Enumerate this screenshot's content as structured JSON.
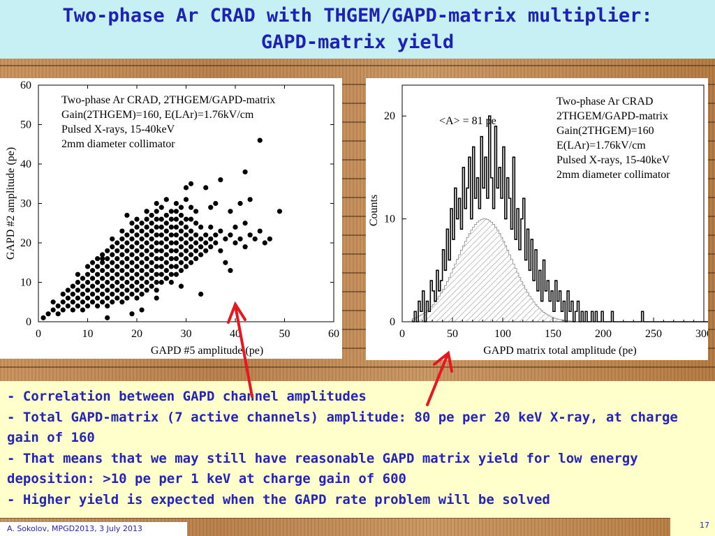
{
  "slide": {
    "title_line1": "Two-phase Ar CRAD with THGEM/GAPD-matrix multiplier:",
    "title_line2": "GAPD-matrix yield",
    "bullets": [
      "- Correlation between GAPD channel amplitudes",
      "- Total GAPD-matrix (7 active channels) amplitude: 80 pe per 20 keV X-ray, at charge gain of 160",
      "- That means that we may still have reasonable GAPD matrix yield for low energy deposition: >10 pe per 1 keV at charge gain of 600",
      "- Higher yield is expected when the GAPD rate problem will be solved"
    ],
    "footer_author": "A. Sokolov, MPGD2013, 3 July 2013",
    "page_number": "17",
    "colors": {
      "title_bg": "#c6f0f4",
      "title_text": "#1e22b4",
      "textbox_bg": "#ffffcc",
      "arrow": "#e8161e"
    }
  },
  "chart_data": [
    {
      "type": "scatter",
      "xlabel": "GAPD #5 amplitude (pe)",
      "ylabel": "GAPD #2 amplitude (pe)",
      "xlim": [
        0,
        60
      ],
      "ylim": [
        0,
        60
      ],
      "xticks": [
        0,
        10,
        20,
        30,
        40,
        50,
        60
      ],
      "yticks": [
        0,
        10,
        20,
        30,
        40,
        50,
        60
      ],
      "annotations": [
        "Two-phase Ar CRAD, 2THGEM/GAPD-matrix",
        "Gain(2THGEM)=160, E(LAr)=1.76kV/cm",
        "Pulsed X-rays, 15-40keV",
        "2mm diameter collimator"
      ],
      "points": [
        [
          1,
          1
        ],
        [
          2,
          2
        ],
        [
          3,
          3
        ],
        [
          3,
          5
        ],
        [
          4,
          2
        ],
        [
          4,
          4
        ],
        [
          5,
          3
        ],
        [
          5,
          5
        ],
        [
          5,
          7
        ],
        [
          6,
          4
        ],
        [
          6,
          6
        ],
        [
          6,
          8
        ],
        [
          7,
          3
        ],
        [
          7,
          5
        ],
        [
          7,
          7
        ],
        [
          7,
          9
        ],
        [
          8,
          4
        ],
        [
          8,
          6
        ],
        [
          8,
          8
        ],
        [
          8,
          10
        ],
        [
          8,
          12
        ],
        [
          9,
          3
        ],
        [
          9,
          5
        ],
        [
          9,
          7
        ],
        [
          9,
          9
        ],
        [
          9,
          11
        ],
        [
          10,
          4
        ],
        [
          10,
          6
        ],
        [
          10,
          8
        ],
        [
          10,
          10
        ],
        [
          10,
          12
        ],
        [
          10,
          14
        ],
        [
          11,
          5
        ],
        [
          11,
          7
        ],
        [
          11,
          9
        ],
        [
          11,
          11
        ],
        [
          11,
          13
        ],
        [
          11,
          15
        ],
        [
          12,
          4
        ],
        [
          12,
          6
        ],
        [
          12,
          8
        ],
        [
          12,
          10
        ],
        [
          12,
          12
        ],
        [
          12,
          14
        ],
        [
          12,
          16
        ],
        [
          13,
          5
        ],
        [
          13,
          7
        ],
        [
          13,
          9
        ],
        [
          13,
          11
        ],
        [
          13,
          13
        ],
        [
          13,
          15
        ],
        [
          13,
          17
        ],
        [
          14,
          4
        ],
        [
          14,
          6
        ],
        [
          14,
          8
        ],
        [
          14,
          10
        ],
        [
          14,
          12
        ],
        [
          14,
          14
        ],
        [
          14,
          16
        ],
        [
          14,
          18
        ],
        [
          15,
          5
        ],
        [
          15,
          7
        ],
        [
          15,
          9
        ],
        [
          15,
          11
        ],
        [
          15,
          13
        ],
        [
          15,
          15
        ],
        [
          15,
          17
        ],
        [
          15,
          19
        ],
        [
          15,
          21
        ],
        [
          16,
          6
        ],
        [
          16,
          8
        ],
        [
          16,
          10
        ],
        [
          16,
          12
        ],
        [
          16,
          14
        ],
        [
          16,
          16
        ],
        [
          16,
          18
        ],
        [
          16,
          20
        ],
        [
          17,
          5
        ],
        [
          17,
          7
        ],
        [
          17,
          9
        ],
        [
          17,
          11
        ],
        [
          17,
          13
        ],
        [
          17,
          15
        ],
        [
          17,
          17
        ],
        [
          17,
          19
        ],
        [
          17,
          21
        ],
        [
          17,
          23
        ],
        [
          18,
          6
        ],
        [
          18,
          8
        ],
        [
          18,
          10
        ],
        [
          18,
          12
        ],
        [
          18,
          14
        ],
        [
          18,
          16
        ],
        [
          18,
          18
        ],
        [
          18,
          20
        ],
        [
          18,
          22
        ],
        [
          19,
          7
        ],
        [
          19,
          9
        ],
        [
          19,
          11
        ],
        [
          19,
          13
        ],
        [
          19,
          15
        ],
        [
          19,
          17
        ],
        [
          19,
          19
        ],
        [
          19,
          21
        ],
        [
          19,
          23
        ],
        [
          19,
          25
        ],
        [
          20,
          6
        ],
        [
          20,
          8
        ],
        [
          20,
          10
        ],
        [
          20,
          12
        ],
        [
          20,
          14
        ],
        [
          20,
          16
        ],
        [
          20,
          18
        ],
        [
          20,
          20
        ],
        [
          20,
          22
        ],
        [
          20,
          24
        ],
        [
          20,
          26
        ],
        [
          21,
          7
        ],
        [
          21,
          9
        ],
        [
          21,
          11
        ],
        [
          21,
          13
        ],
        [
          21,
          15
        ],
        [
          21,
          17
        ],
        [
          21,
          19
        ],
        [
          21,
          21
        ],
        [
          21,
          23
        ],
        [
          21,
          25
        ],
        [
          22,
          8
        ],
        [
          22,
          10
        ],
        [
          22,
          12
        ],
        [
          22,
          14
        ],
        [
          22,
          16
        ],
        [
          22,
          18
        ],
        [
          22,
          20
        ],
        [
          22,
          22
        ],
        [
          22,
          24
        ],
        [
          22,
          26
        ],
        [
          22,
          28
        ],
        [
          23,
          9
        ],
        [
          23,
          11
        ],
        [
          23,
          13
        ],
        [
          23,
          15
        ],
        [
          23,
          17
        ],
        [
          23,
          19
        ],
        [
          23,
          21
        ],
        [
          23,
          23
        ],
        [
          23,
          25
        ],
        [
          23,
          27
        ],
        [
          24,
          8
        ],
        [
          24,
          10
        ],
        [
          24,
          12
        ],
        [
          24,
          14
        ],
        [
          24,
          16
        ],
        [
          24,
          18
        ],
        [
          24,
          20
        ],
        [
          24,
          22
        ],
        [
          24,
          24
        ],
        [
          24,
          26
        ],
        [
          24,
          28
        ],
        [
          25,
          10
        ],
        [
          25,
          12
        ],
        [
          25,
          14
        ],
        [
          25,
          16
        ],
        [
          25,
          18
        ],
        [
          25,
          20
        ],
        [
          25,
          22
        ],
        [
          25,
          24
        ],
        [
          25,
          26
        ],
        [
          25,
          29
        ],
        [
          26,
          11
        ],
        [
          26,
          13
        ],
        [
          26,
          15
        ],
        [
          26,
          17
        ],
        [
          26,
          19
        ],
        [
          26,
          21
        ],
        [
          26,
          23
        ],
        [
          26,
          25
        ],
        [
          26,
          27
        ],
        [
          26,
          31
        ],
        [
          27,
          10
        ],
        [
          27,
          12
        ],
        [
          27,
          14
        ],
        [
          27,
          16
        ],
        [
          27,
          18
        ],
        [
          27,
          20
        ],
        [
          27,
          22
        ],
        [
          27,
          24
        ],
        [
          27,
          26
        ],
        [
          27,
          28
        ],
        [
          28,
          12
        ],
        [
          28,
          14
        ],
        [
          28,
          16
        ],
        [
          28,
          18
        ],
        [
          28,
          20
        ],
        [
          28,
          22
        ],
        [
          28,
          24
        ],
        [
          28,
          26
        ],
        [
          28,
          28
        ],
        [
          28,
          30
        ],
        [
          29,
          13
        ],
        [
          29,
          15
        ],
        [
          29,
          17
        ],
        [
          29,
          19
        ],
        [
          29,
          21
        ],
        [
          29,
          23
        ],
        [
          29,
          25
        ],
        [
          29,
          27
        ],
        [
          29,
          29
        ],
        [
          30,
          14
        ],
        [
          30,
          16
        ],
        [
          30,
          18
        ],
        [
          30,
          20
        ],
        [
          30,
          22
        ],
        [
          30,
          24
        ],
        [
          30,
          26
        ],
        [
          30,
          31
        ],
        [
          30,
          34
        ],
        [
          31,
          15
        ],
        [
          31,
          17
        ],
        [
          31,
          19
        ],
        [
          31,
          21
        ],
        [
          31,
          23
        ],
        [
          31,
          26
        ],
        [
          31,
          29
        ],
        [
          32,
          16
        ],
        [
          32,
          18
        ],
        [
          32,
          20
        ],
        [
          32,
          22
        ],
        [
          32,
          25
        ],
        [
          32,
          28
        ],
        [
          33,
          17
        ],
        [
          33,
          19
        ],
        [
          33,
          21
        ],
        [
          33,
          24
        ],
        [
          34,
          18
        ],
        [
          34,
          20
        ],
        [
          34,
          22
        ],
        [
          35,
          19
        ],
        [
          35,
          21
        ],
        [
          35,
          24
        ],
        [
          35,
          29
        ],
        [
          36,
          20
        ],
        [
          36,
          22
        ],
        [
          36,
          30
        ],
        [
          37,
          18
        ],
        [
          37,
          23
        ],
        [
          38,
          21
        ],
        [
          38,
          15
        ],
        [
          39,
          22
        ],
        [
          39,
          28
        ],
        [
          39,
          13
        ],
        [
          40,
          20
        ],
        [
          40,
          24
        ],
        [
          41,
          21
        ],
        [
          41,
          30
        ],
        [
          42,
          19
        ],
        [
          42,
          25
        ],
        [
          43,
          22
        ],
        [
          43,
          31
        ],
        [
          44,
          21
        ],
        [
          45,
          23
        ],
        [
          46,
          20
        ],
        [
          47,
          21
        ],
        [
          49,
          28
        ],
        [
          45,
          46
        ],
        [
          42,
          38
        ],
        [
          37,
          36
        ],
        [
          34,
          34
        ],
        [
          31,
          35
        ],
        [
          24,
          30
        ],
        [
          22,
          28
        ],
        [
          29,
          9
        ],
        [
          26,
          11
        ],
        [
          24,
          6
        ],
        [
          33,
          7
        ],
        [
          21,
          3
        ],
        [
          19,
          2
        ],
        [
          14,
          1
        ],
        [
          18,
          27
        ],
        [
          13,
          16
        ]
      ]
    },
    {
      "type": "histogram",
      "xlabel": "GAPD matrix total amplitude  (pe)",
      "ylabel": "Counts",
      "xlim": [
        0,
        300
      ],
      "ylim": [
        0,
        23
      ],
      "xticks": [
        0,
        50,
        100,
        150,
        200,
        250,
        300
      ],
      "yticks": [
        0,
        10,
        20
      ],
      "annotations": [
        "Two-phase Ar CRAD",
        "2THGEM/GAPD-matrix",
        "Gain(2THGEM)=160",
        "E(LAr)=1.76kV/cm",
        "Pulsed X-rays, 15-40keV",
        "2mm diameter collimator"
      ],
      "mean_label": "<A> = 81 pe",
      "bin_width": 2,
      "bin_start": 10,
      "counts": [
        0,
        1,
        0,
        2,
        1,
        3,
        0,
        2,
        1,
        4,
        3,
        2,
        5,
        3,
        4,
        7,
        5,
        9,
        6,
        11,
        8,
        13,
        10,
        12,
        9,
        15,
        11,
        13,
        16,
        10,
        17,
        12,
        14,
        11,
        18,
        13,
        16,
        12,
        20,
        14,
        11,
        19,
        13,
        15,
        12,
        17,
        10,
        14,
        12,
        9,
        16,
        8,
        11,
        7,
        10,
        12,
        6,
        9,
        5,
        8,
        4,
        7,
        3,
        5,
        2,
        6,
        3,
        4,
        2,
        3,
        1,
        4,
        2,
        3,
        1,
        2,
        0,
        3,
        1,
        2,
        0,
        1,
        2,
        0,
        1,
        0,
        1,
        0,
        0,
        1,
        0,
        1,
        0,
        0,
        1,
        0,
        0,
        0,
        0,
        1,
        0,
        0,
        0,
        0,
        0,
        0,
        0,
        0,
        0,
        0,
        0,
        0,
        0,
        0,
        1,
        0,
        0,
        0,
        0,
        0,
        0,
        0,
        0,
        0,
        0,
        0,
        0,
        0,
        0,
        0,
        0,
        0,
        0,
        0,
        0,
        0,
        0,
        0,
        0,
        0,
        0,
        0,
        0,
        0,
        0,
        0,
        0,
        0,
        0,
        0
      ],
      "fit_peak_counts": 10,
      "fit_mean": 81,
      "fit_sigma": 27
    }
  ]
}
